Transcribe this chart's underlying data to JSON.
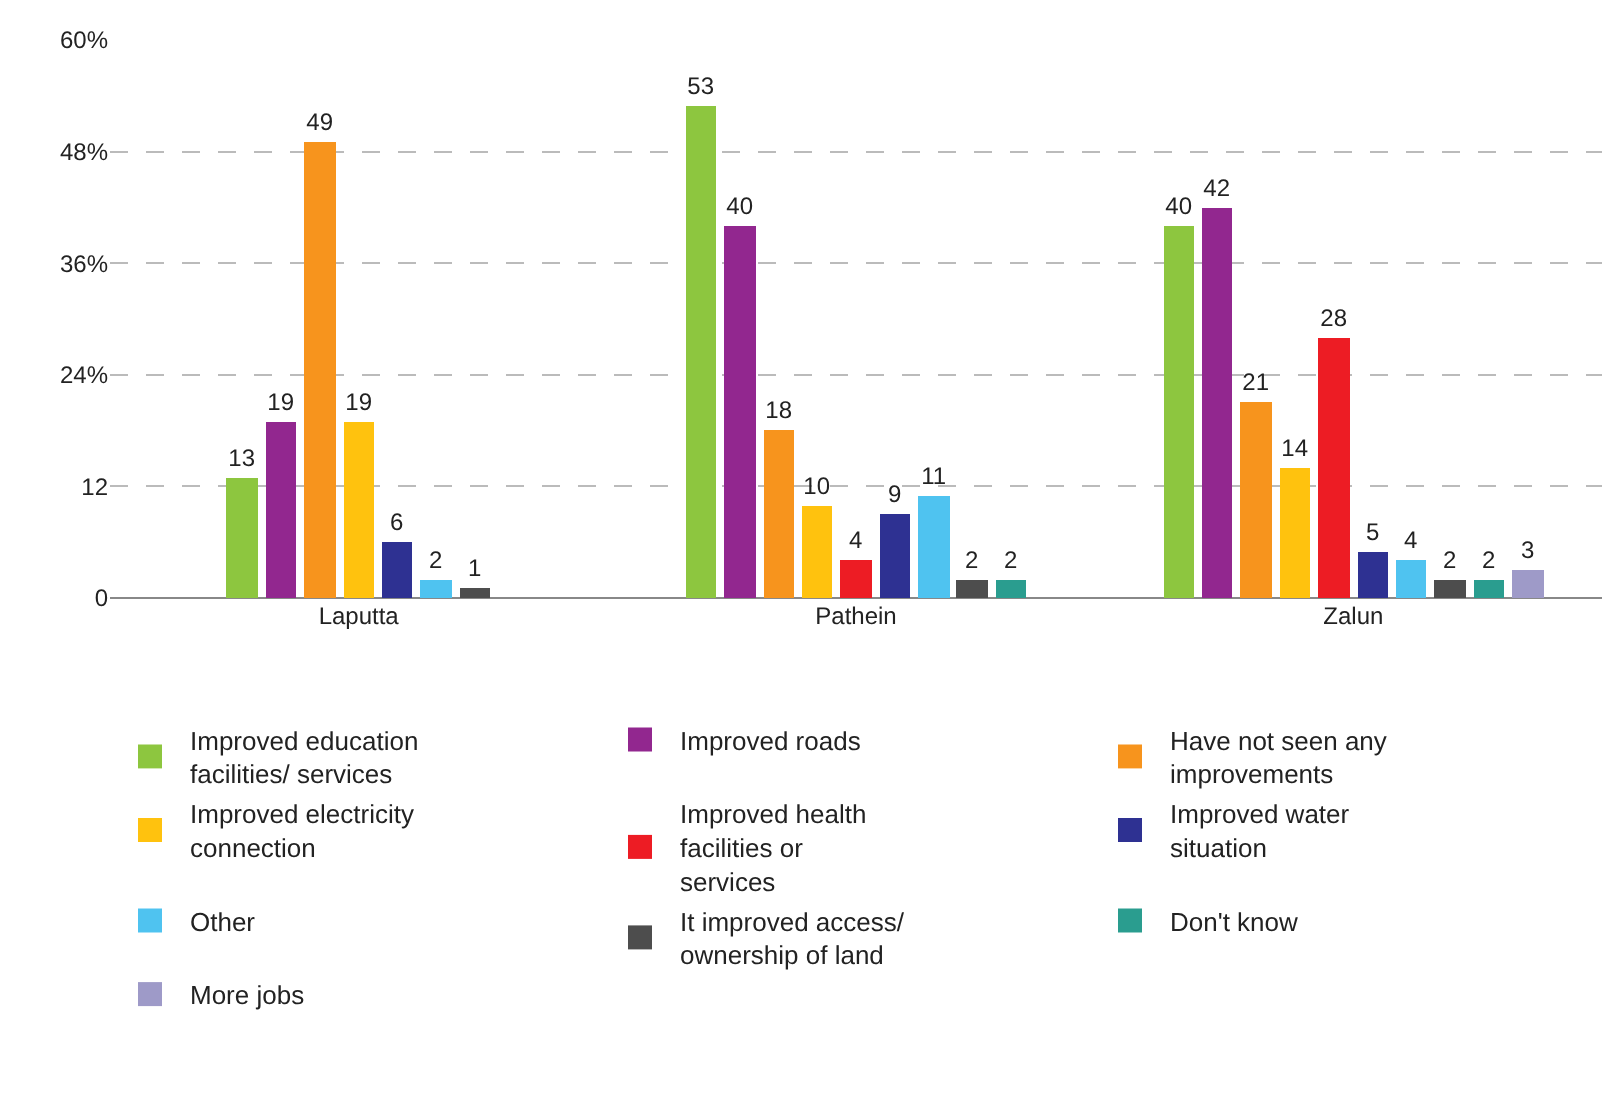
{
  "chart_data": {
    "type": "bar",
    "categories": [
      "Laputta",
      "Pathein",
      "Zalun"
    ],
    "ylim": [
      0,
      60
    ],
    "yticks": [
      0,
      12,
      {
        "value": 24,
        "label": "24%"
      },
      {
        "value": 36,
        "label": "36%"
      },
      {
        "value": 48,
        "label": "48%"
      },
      {
        "value": 60,
        "label": "60%"
      }
    ],
    "grid": "y",
    "legend": "bottom",
    "data_labels": true,
    "series": [
      {
        "name": "Improved education facilities/ services",
        "color": "#8dc63f",
        "values": [
          13,
          53,
          40
        ]
      },
      {
        "name": "Improved roads",
        "color": "#92278f",
        "values": [
          19,
          40,
          42
        ]
      },
      {
        "name": "Have not seen any improvements",
        "color": "#f7941d",
        "values": [
          49,
          18,
          21
        ]
      },
      {
        "name": "Improved electricity connection",
        "color": "#ffc20e",
        "values": [
          19,
          10,
          14
        ]
      },
      {
        "name": "Improved health facilities or services",
        "color": "#ed1c24",
        "values": [
          null,
          4,
          28
        ]
      },
      {
        "name": "Improved water situation",
        "color": "#2e3192",
        "values": [
          6,
          9,
          5
        ]
      },
      {
        "name": "Other",
        "color": "#4fc3f0",
        "values": [
          2,
          11,
          4
        ]
      },
      {
        "name": "It improved access/ ownership of land",
        "color": "#4d4d4d",
        "values": [
          1,
          2,
          2
        ]
      },
      {
        "name": "Don't know",
        "color": "#2a9d8f",
        "values": [
          null,
          2,
          2
        ]
      },
      {
        "name": "More jobs",
        "color": "#9e9ac8",
        "values": [
          null,
          null,
          3
        ]
      }
    ]
  }
}
